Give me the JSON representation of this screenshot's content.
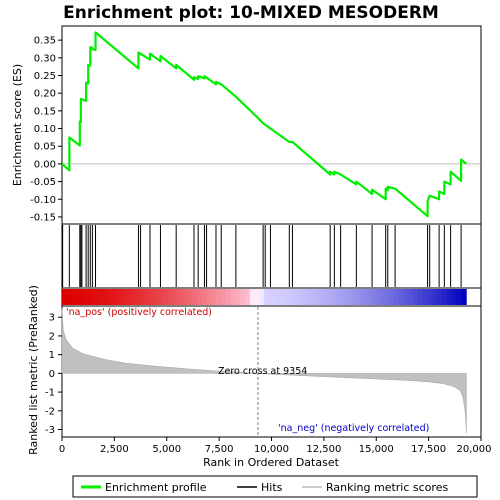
{
  "chart_data": {
    "type": "line",
    "title": "Enrichment plot: 10-MIXED MESODERM",
    "xlabel": "Rank in Ordered Dataset",
    "ylabel_top": "Enrichment score (ES)",
    "ylabel_bottom": "Ranked list metric (PreRanked)",
    "xlim": [
      0,
      20000
    ],
    "x_ticks": [
      0,
      2500,
      5000,
      7500,
      10000,
      12500,
      15000,
      17500,
      20000
    ],
    "x_tick_labels": [
      "0",
      "2,500",
      "5,000",
      "7,500",
      "10,000",
      "12,500",
      "15,000",
      "17,500",
      "20,000"
    ],
    "es_ylim": [
      -0.17,
      0.39
    ],
    "es_ticks": [
      -0.15,
      -0.1,
      -0.05,
      0.0,
      0.05,
      0.1,
      0.15,
      0.2,
      0.25,
      0.3,
      0.35
    ],
    "es_tick_labels": [
      "-0.15",
      "-0.10",
      "-0.05",
      "0.00",
      "0.05",
      "0.10",
      "0.15",
      "0.20",
      "0.25",
      "0.30",
      "0.35"
    ],
    "metric_ylim": [
      -3.4,
      3.6
    ],
    "metric_ticks": [
      -3,
      -2,
      -1,
      0,
      1,
      2,
      3
    ],
    "metric_tick_labels": [
      "-3",
      "-2",
      "-1",
      "0",
      "1",
      "2",
      "3"
    ],
    "total_genes": 19300,
    "zero_cross": 9354,
    "zero_cross_label": "Zero cross at 9354",
    "pos_label": "'na_pos' (positively correlated)",
    "neg_label": "'na_neg' (negatively correlated)",
    "hits": [
      30,
      350,
      850,
      900,
      950,
      1150,
      1250,
      1350,
      1450,
      1600,
      3650,
      3750,
      4200,
      4700,
      5450,
      6300,
      6500,
      6800,
      6900,
      7350,
      7600,
      8300,
      9600,
      9700,
      9950,
      10850,
      11000,
      12800,
      13000,
      13300,
      14050,
      14800,
      15450,
      15550,
      15900,
      17450,
      17550,
      18000,
      18250,
      18550,
      19050
    ],
    "es_curve": [
      [
        0,
        0.0
      ],
      [
        350,
        -0.018
      ],
      [
        351,
        0.075
      ],
      [
        850,
        0.052
      ],
      [
        851,
        0.12
      ],
      [
        900,
        0.118
      ],
      [
        901,
        0.184
      ],
      [
        1150,
        0.178
      ],
      [
        1151,
        0.23
      ],
      [
        1250,
        0.228
      ],
      [
        1251,
        0.28
      ],
      [
        1350,
        0.278
      ],
      [
        1351,
        0.33
      ],
      [
        1450,
        0.328
      ],
      [
        1451,
        0.325
      ],
      [
        1600,
        0.322
      ],
      [
        1601,
        0.372
      ],
      [
        3650,
        0.27
      ],
      [
        3651,
        0.315
      ],
      [
        4200,
        0.295
      ],
      [
        4201,
        0.312
      ],
      [
        4700,
        0.29
      ],
      [
        4701,
        0.305
      ],
      [
        5450,
        0.27
      ],
      [
        5451,
        0.28
      ],
      [
        6300,
        0.238
      ],
      [
        6301,
        0.245
      ],
      [
        6500,
        0.24
      ],
      [
        6501,
        0.248
      ],
      [
        6800,
        0.242
      ],
      [
        6801,
        0.248
      ],
      [
        7350,
        0.225
      ],
      [
        7351,
        0.232
      ],
      [
        7600,
        0.225
      ],
      [
        8300,
        0.19
      ],
      [
        9354,
        0.13
      ],
      [
        9600,
        0.115
      ],
      [
        9950,
        0.1
      ],
      [
        10850,
        0.062
      ],
      [
        11000,
        0.062
      ],
      [
        12800,
        -0.03
      ],
      [
        12801,
        -0.022
      ],
      [
        13000,
        -0.03
      ],
      [
        13001,
        -0.022
      ],
      [
        13300,
        -0.03
      ],
      [
        14050,
        -0.058
      ],
      [
        14051,
        -0.05
      ],
      [
        14800,
        -0.085
      ],
      [
        14801,
        -0.073
      ],
      [
        15450,
        -0.1
      ],
      [
        15451,
        -0.07
      ],
      [
        15550,
        -0.075
      ],
      [
        15551,
        -0.065
      ],
      [
        15900,
        -0.07
      ],
      [
        17450,
        -0.148
      ],
      [
        17451,
        -0.105
      ],
      [
        17550,
        -0.09
      ],
      [
        18000,
        -0.1
      ],
      [
        18001,
        -0.078
      ],
      [
        18250,
        -0.085
      ],
      [
        18251,
        -0.05
      ],
      [
        18550,
        -0.058
      ],
      [
        18551,
        -0.022
      ],
      [
        19050,
        -0.048
      ],
      [
        19051,
        0.012
      ],
      [
        19300,
        0.0
      ]
    ],
    "metric_curve": [
      [
        0,
        3.5
      ],
      [
        60,
        2.3
      ],
      [
        200,
        1.8
      ],
      [
        500,
        1.35
      ],
      [
        1000,
        1.05
      ],
      [
        2000,
        0.75
      ],
      [
        3000,
        0.55
      ],
      [
        4500,
        0.38
      ],
      [
        6000,
        0.24
      ],
      [
        7500,
        0.12
      ],
      [
        9354,
        0.0
      ],
      [
        11000,
        -0.1
      ],
      [
        13000,
        -0.2
      ],
      [
        15000,
        -0.3
      ],
      [
        16500,
        -0.38
      ],
      [
        17500,
        -0.45
      ],
      [
        18200,
        -0.55
      ],
      [
        18700,
        -0.7
      ],
      [
        19000,
        -0.9
      ],
      [
        19150,
        -1.3
      ],
      [
        19250,
        -2.1
      ],
      [
        19300,
        -3.2
      ]
    ],
    "legend": [
      {
        "name": "Enrichment profile",
        "color": "#00ee00",
        "style": "line"
      },
      {
        "name": "Hits",
        "color": "#000000",
        "style": "line"
      },
      {
        "name": "Ranking metric scores",
        "color": "#bbbbbb",
        "style": "line"
      }
    ],
    "colors": {
      "es_line": "#00ee00",
      "hits": "#000000",
      "metric_fill": "#c0c0c0",
      "pos_text": "#cc0000",
      "neg_text": "#0000cc",
      "zero_line": "#808080",
      "grid": "#aaaaaa"
    }
  }
}
